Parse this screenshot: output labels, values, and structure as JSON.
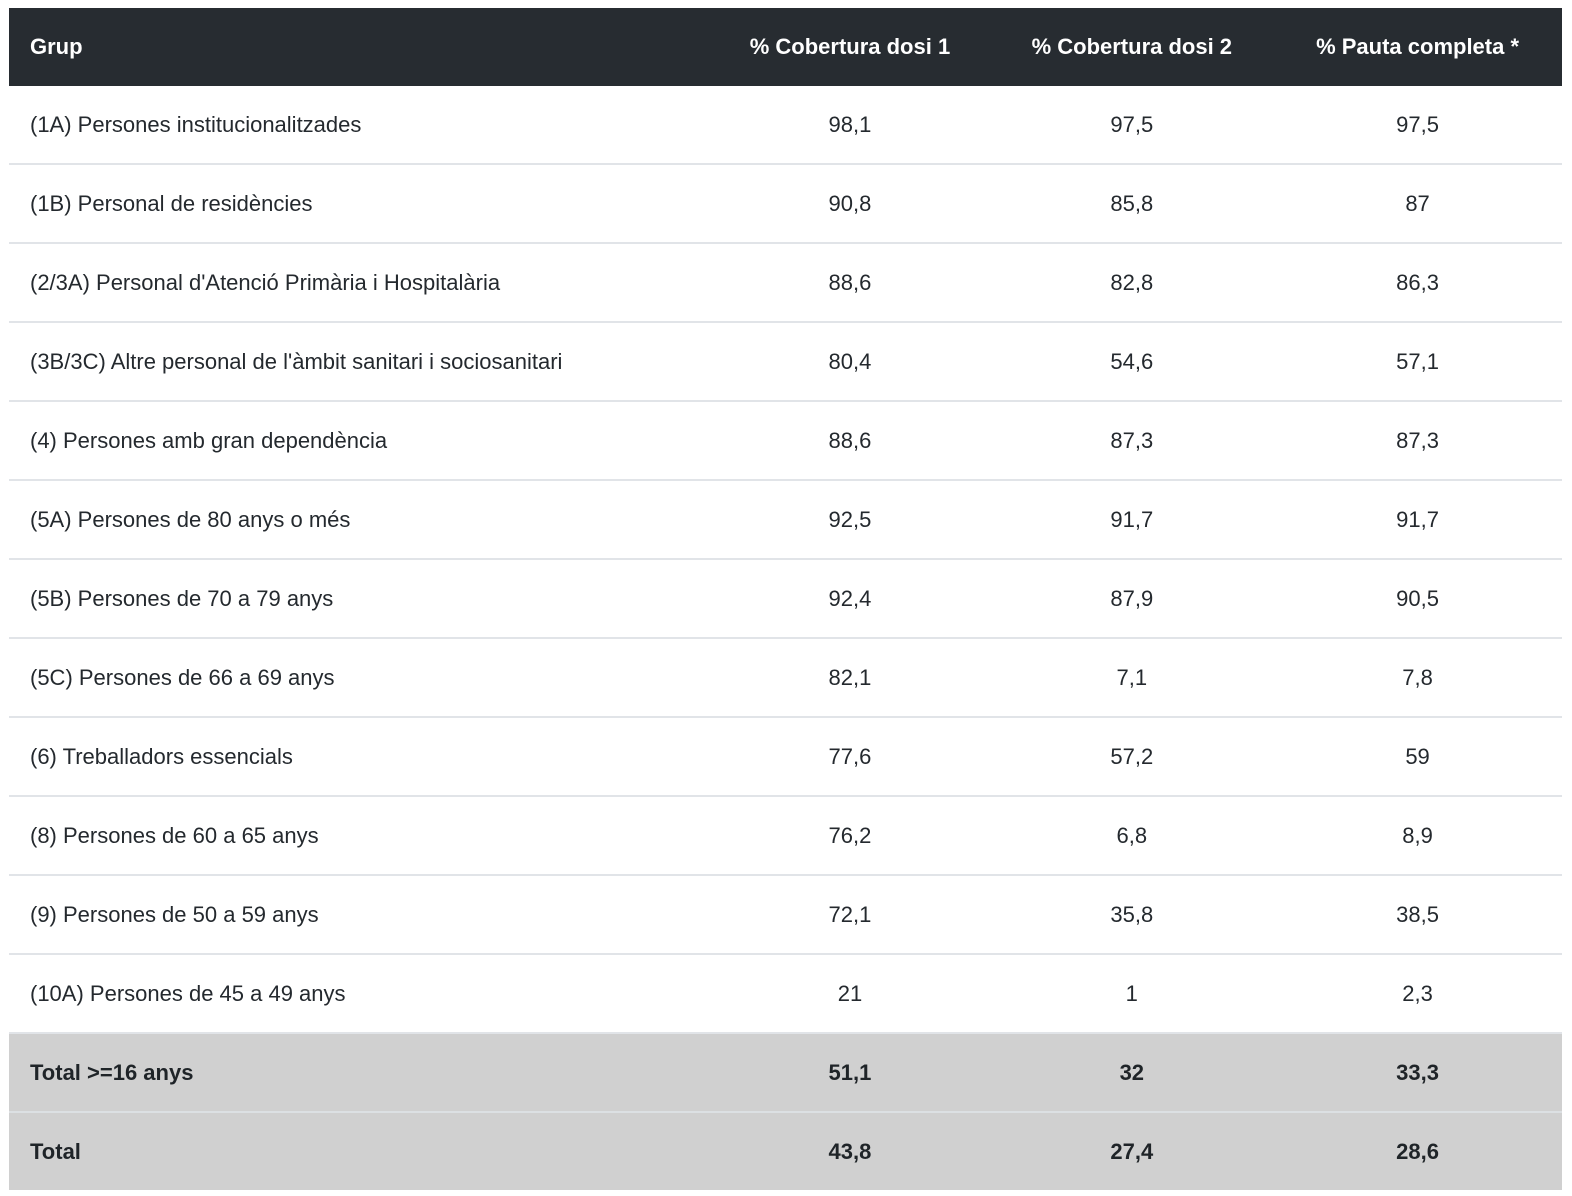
{
  "table": {
    "columns": [
      {
        "key": "grup",
        "label": "Grup"
      },
      {
        "key": "dosi1",
        "label": "% Cobertura dosi 1"
      },
      {
        "key": "dosi2",
        "label": "% Cobertura dosi 2"
      },
      {
        "key": "pauta",
        "label": "% Pauta completa *"
      }
    ],
    "rows": [
      {
        "grup": "(1A) Persones institucionalitzades",
        "dosi1": "98,1",
        "dosi2": "97,5",
        "pauta": "97,5"
      },
      {
        "grup": "(1B) Personal de residències",
        "dosi1": "90,8",
        "dosi2": "85,8",
        "pauta": "87"
      },
      {
        "grup": "(2/3A) Personal d'Atenció Primària i Hospitalària",
        "dosi1": "88,6",
        "dosi2": "82,8",
        "pauta": "86,3"
      },
      {
        "grup": "(3B/3C) Altre personal de l'àmbit sanitari i sociosanitari",
        "dosi1": "80,4",
        "dosi2": "54,6",
        "pauta": "57,1"
      },
      {
        "grup": "(4) Persones amb gran dependència",
        "dosi1": "88,6",
        "dosi2": "87,3",
        "pauta": "87,3"
      },
      {
        "grup": "(5A) Persones de 80 anys o més",
        "dosi1": "92,5",
        "dosi2": "91,7",
        "pauta": "91,7"
      },
      {
        "grup": "(5B) Persones de 70 a 79 anys",
        "dosi1": "92,4",
        "dosi2": "87,9",
        "pauta": "90,5"
      },
      {
        "grup": "(5C) Persones de 66 a 69 anys",
        "dosi1": "82,1",
        "dosi2": "7,1",
        "pauta": "7,8"
      },
      {
        "grup": "(6) Treballadors essencials",
        "dosi1": "77,6",
        "dosi2": "57,2",
        "pauta": "59"
      },
      {
        "grup": "(8) Persones de 60 a 65 anys",
        "dosi1": "76,2",
        "dosi2": "6,8",
        "pauta": "8,9"
      },
      {
        "grup": "(9) Persones de 50 a 59 anys",
        "dosi1": "72,1",
        "dosi2": "35,8",
        "pauta": "38,5"
      },
      {
        "grup": "(10A) Persones de 45 a 49 anys",
        "dosi1": "21",
        "dosi2": "1",
        "pauta": "2,3"
      }
    ],
    "total_rows": [
      {
        "grup": "Total >=16 anys",
        "dosi1": "51,1",
        "dosi2": "32",
        "pauta": "33,3"
      },
      {
        "grup": "Total",
        "dosi1": "43,8",
        "dosi2": "27,4",
        "pauta": "28,6"
      }
    ]
  },
  "colors": {
    "header_bg": "#272c31",
    "header_text": "#ffffff",
    "row_text": "#24292e",
    "row_border": "#e1e4e8",
    "total_bg": "#d0d0d0",
    "total_border": "#dce0e3"
  },
  "chart_data": {
    "type": "table",
    "title": "",
    "columns": [
      "Grup",
      "% Cobertura dosi 1",
      "% Cobertura dosi 2",
      "% Pauta completa *"
    ],
    "rows": [
      [
        "(1A) Persones institucionalitzades",
        98.1,
        97.5,
        97.5
      ],
      [
        "(1B) Personal de residències",
        90.8,
        85.8,
        87
      ],
      [
        "(2/3A) Personal d'Atenció Primària i Hospitalària",
        88.6,
        82.8,
        86.3
      ],
      [
        "(3B/3C) Altre personal de l'àmbit sanitari i sociosanitari",
        80.4,
        54.6,
        57.1
      ],
      [
        "(4) Persones amb gran dependència",
        88.6,
        87.3,
        87.3
      ],
      [
        "(5A) Persones de 80 anys o més",
        92.5,
        91.7,
        91.7
      ],
      [
        "(5B) Persones de 70 a 79 anys",
        92.4,
        87.9,
        90.5
      ],
      [
        "(5C) Persones de 66 a 69 anys",
        82.1,
        7.1,
        7.8
      ],
      [
        "(6) Treballadors essencials",
        77.6,
        57.2,
        59
      ],
      [
        "(8) Persones de 60 a 65 anys",
        76.2,
        6.8,
        8.9
      ],
      [
        "(9) Persones de 50 a 59 anys",
        72.1,
        35.8,
        38.5
      ],
      [
        "(10A) Persones de 45 a 49 anys",
        21,
        1,
        2.3
      ],
      [
        "Total >=16 anys",
        51.1,
        32,
        33.3
      ],
      [
        "Total",
        43.8,
        27.4,
        28.6
      ]
    ],
    "decimal_separator": ",",
    "notes": "Values are percentages; last two rows are totals with gray background"
  }
}
